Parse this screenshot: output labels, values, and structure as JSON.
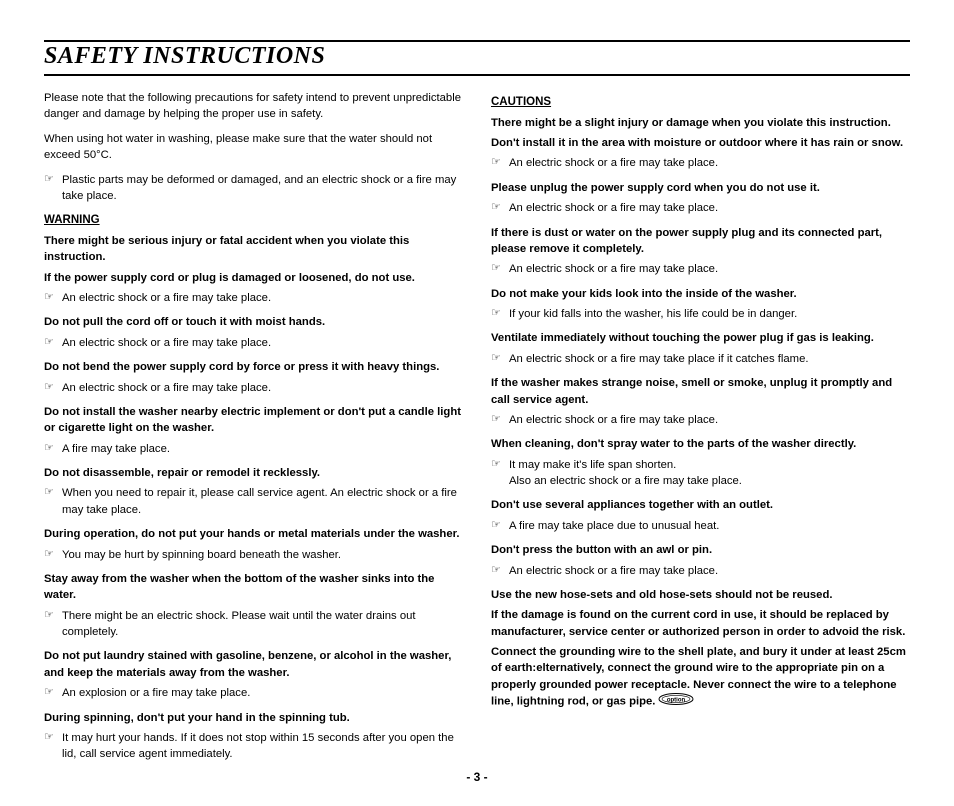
{
  "title": "SAFETY INSTRUCTIONS",
  "page_number": "- 3 -",
  "marker_glyph": "☞",
  "left": {
    "intro1": "Please note that the following precautions for safety intend to prevent unpredictable danger and damage by helping the proper use in safety.",
    "intro2": "When using hot water in washing, please make sure that the water should not exceed 50°C.",
    "intro_bullet": "Plastic parts may be deformed or damaged, and an electric shock or a fire may take place.",
    "warning_head": "WARNING",
    "items": [
      {
        "bold": "There might be serious injury or fatal accident when you violate this instruction."
      },
      {
        "bold": "If the power supply cord or plug is damaged or loosened, do not use.",
        "bullet": "An electric shock or a fire may take place."
      },
      {
        "bold": "Do not pull the cord off or touch it with moist hands.",
        "bullet": "An electric shock or a fire may take place."
      },
      {
        "bold": "Do not bend the power supply cord by force or press it with heavy things.",
        "bullet": "An electric shock or a fire may take place."
      },
      {
        "bold": "Do not install the washer nearby electric implement or don't put a candle light or cigarette light on the washer.",
        "bullet": "A fire may take place."
      },
      {
        "bold": "Do not disassemble, repair or remodel it recklessly.",
        "bullet": "When you need to repair it, please call service agent. An electric shock or a fire may take place."
      },
      {
        "bold": "During operation, do not put your hands or metal materials under the washer.",
        "bullet": "You may be hurt by spinning board beneath the washer."
      },
      {
        "bold": "Stay away from the washer when the bottom of the washer sinks into the water.",
        "bullet": "There might be an electric shock. Please wait until the water drains out completely."
      },
      {
        "bold": "Do not put laundry stained with gasoline, benzene, or alcohol in the washer, and keep the materials away from the washer.",
        "bullet": "An explosion or a fire may take place."
      },
      {
        "bold": "During spinning, don't put your hand in the spinning tub.",
        "bullet": "It may hurt your hands. If it does not stop within 15 seconds after you open the lid, call service agent immediately."
      }
    ]
  },
  "right": {
    "cautions_head": "CAUTIONS",
    "items": [
      {
        "bold": "There might be a slight injury or damage when you violate this instruction."
      },
      {
        "bold": "Don't install it in the area with moisture or outdoor where it has rain or snow.",
        "bullet": "An electric shock or a fire may take place."
      },
      {
        "bold": "Please unplug the power supply cord when you do not use it.",
        "bullet": "An electric shock or a fire may take place."
      },
      {
        "bold": "If there is dust or water on the power supply plug and its connected part, please remove it completely.",
        "bullet": "An electric shock or a fire may take place."
      },
      {
        "bold": "Do not make your kids look into the inside of the washer.",
        "bullet": "If your kid falls into the washer, his life could be in danger."
      },
      {
        "bold": "Ventilate immediately without touching the power plug if gas is leaking.",
        "bullet": "An electric shock or a fire may take place if it catches flame."
      },
      {
        "bold": "If the washer makes strange noise, smell or smoke, unplug it promptly and call service agent.",
        "bullet": "An electric shock or a fire may take place."
      },
      {
        "bold": "When cleaning, don't spray water to the parts of the washer directly.",
        "bullet": "It may make it's life span shorten.\nAlso an electric shock or a fire may take place."
      },
      {
        "bold": "Don't use several appliances together with an outlet.",
        "bullet": "A fire may take place due to unusual heat."
      },
      {
        "bold": "Don't press the button with an awl or pin.",
        "bullet": "An electric shock or a fire may take place."
      },
      {
        "bold": "Use the new hose-sets and old hose-sets should not be reused."
      },
      {
        "bold": "If the damage is found on the current cord in use, it should be replaced by manufacturer, service center or authorized person in order to advoid the risk."
      },
      {
        "bold": "Connect the grounding wire to the shell plate, and bury it under at least 25cm of earth:elternatively, connect the ground wire to the appropriate pin on a properly grounded power receptacle. Never connect the wire to a telephone line, lightning rod, or gas pipe.",
        "option": true
      }
    ]
  },
  "option_label": "option"
}
